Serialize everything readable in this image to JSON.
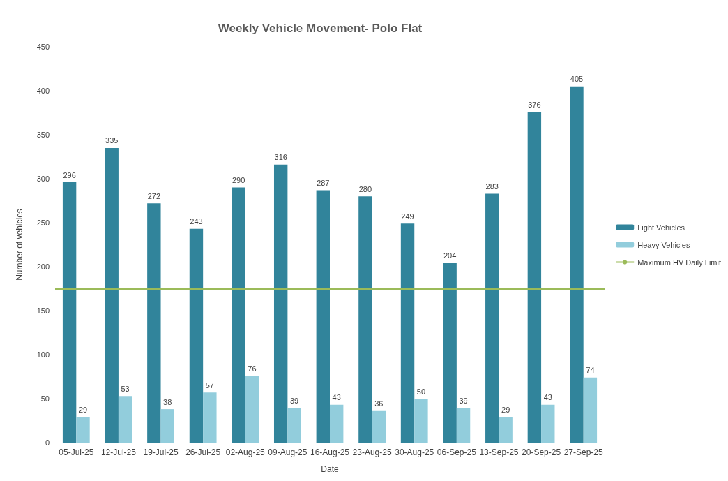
{
  "chart_data": {
    "type": "bar",
    "title": "Weekly Vehicle Movement- Polo Flat",
    "xlabel": "Date",
    "ylabel": "Number of vehicles",
    "categories": [
      "05-Jul-25",
      "12-Jul-25",
      "19-Jul-25",
      "26-Jul-25",
      "02-Aug-25",
      "09-Aug-25",
      "16-Aug-25",
      "23-Aug-25",
      "30-Aug-25",
      "06-Sep-25",
      "13-Sep-25",
      "20-Sep-25",
      "27-Sep-25"
    ],
    "series": [
      {
        "name": "Light Vehicles",
        "color": "#31849b",
        "values": [
          296,
          335,
          272,
          243,
          290,
          316,
          287,
          280,
          249,
          204,
          283,
          376,
          405
        ]
      },
      {
        "name": "Heavy Vehicles",
        "color": "#92cddc",
        "values": [
          29,
          53,
          38,
          57,
          76,
          39,
          43,
          36,
          50,
          39,
          29,
          43,
          74
        ]
      }
    ],
    "ref_lines": [
      {
        "axis": "y",
        "value": 175,
        "label": "Maximum HV Daily Limit",
        "color": "#9bbb59"
      }
    ],
    "ylim": [
      0,
      450
    ],
    "yticks": [
      0,
      50,
      100,
      150,
      200,
      250,
      300,
      350,
      400,
      450
    ],
    "grid": "y",
    "legend": "right",
    "data_labels": true
  }
}
